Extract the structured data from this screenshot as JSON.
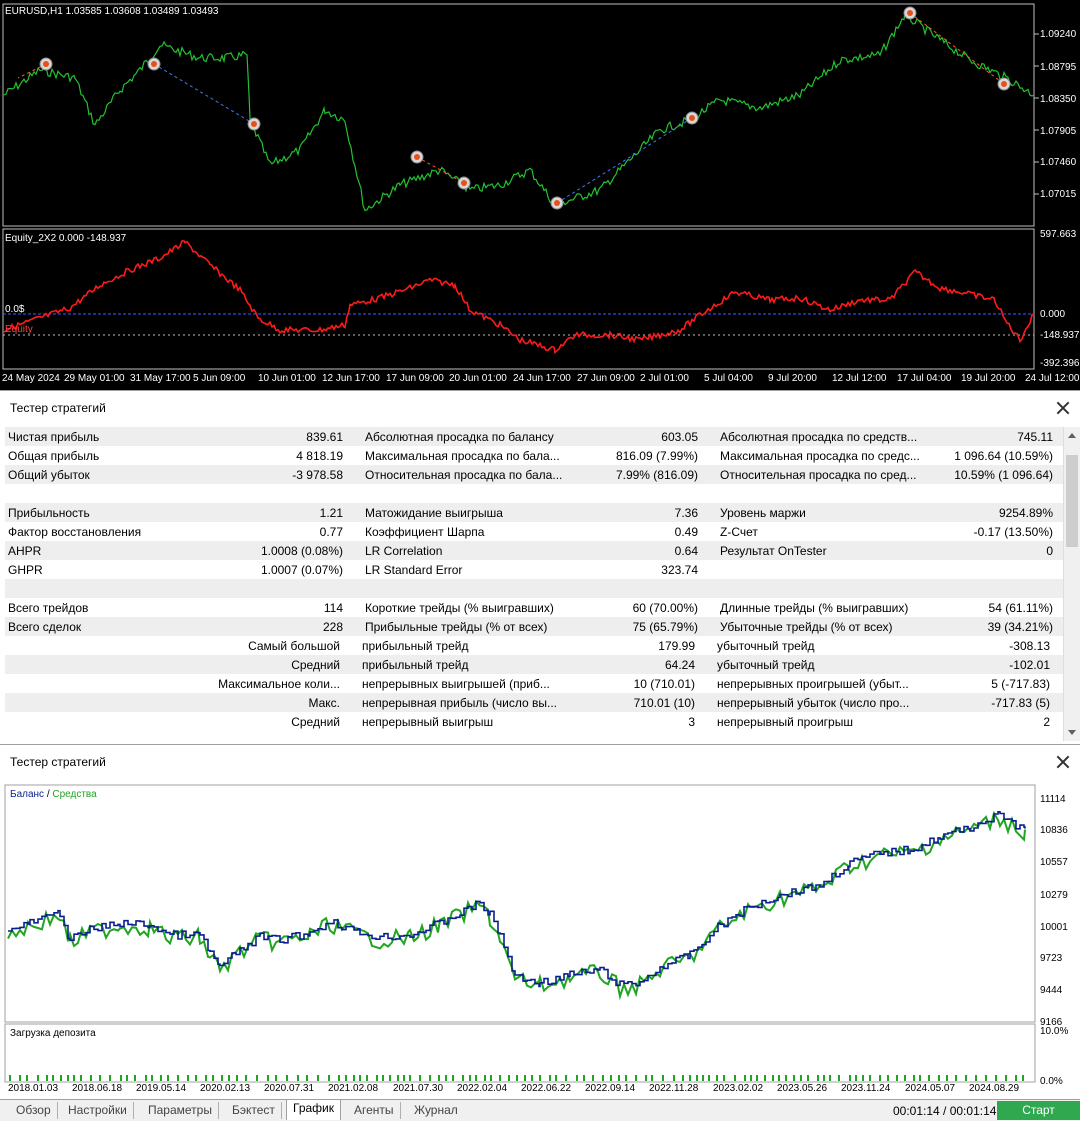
{
  "price_chart": {
    "symbol_caption": "EURUSD,H1  1.03585 1.03608 1.03489 1.03493",
    "price_ticks": [
      "1.09240",
      "1.08795",
      "1.08350",
      "1.07905",
      "1.07460",
      "1.07015"
    ],
    "equity_caption": "Equity_2X2 0.000 -148.937",
    "equity_ticks": [
      "597.663",
      "0.000",
      "-148.937",
      "-392.396"
    ],
    "zero_label": "0.0$",
    "equity_label": "Equity",
    "time_ticks": [
      "24 May 2024",
      "29 May 01:00",
      "31 May 17:00",
      "5 Jun 09:00",
      "10 Jun 01:00",
      "12 Jun 17:00",
      "17 Jun 09:00",
      "20 Jun 01:00",
      "24 Jun 17:00",
      "27 Jun 09:00",
      "2 Jul 01:00",
      "5 Jul 04:00",
      "9 Jul 20:00",
      "12 Jul 12:00",
      "17 Jul 04:00",
      "19 Jul 20:00",
      "24 Jul 12:00"
    ],
    "colors": {
      "price": "#22c32e",
      "equity": "#ff1a1a",
      "zero_line": "#3b5bff"
    }
  },
  "tester": {
    "title": "Тестер стратегий",
    "rows": [
      {
        "cells": [
          "Чистая прибыль",
          "839.61",
          "Абсолютная просадка по балансу",
          "603.05",
          "Абсолютная просадка по средств...",
          "745.11"
        ]
      },
      {
        "cells": [
          "Общая прибыль",
          "4 818.19",
          "Максимальная просадка по бала...",
          "816.09 (7.99%)",
          "Максимальная просадка по средс...",
          "1 096.64 (10.59%)"
        ]
      },
      {
        "cells": [
          "Общий убыток",
          "-3 978.58",
          "Относительная просадка по бала...",
          "7.99% (816.09)",
          "Относительная просадка по сред...",
          "10.59% (1 096.64)"
        ]
      },
      {
        "cells": [
          "",
          "",
          "",
          "",
          "",
          ""
        ]
      },
      {
        "cells": [
          "Прибыльность",
          "1.21",
          "Матожидание выигрыша",
          "7.36",
          "Уровень маржи",
          "9254.89%"
        ]
      },
      {
        "cells": [
          "Фактор восстановления",
          "0.77",
          "Коэффициент Шарпа",
          "0.49",
          "Z-Счет",
          "-0.17 (13.50%)"
        ]
      },
      {
        "cells": [
          "AHPR",
          "1.0008 (0.08%)",
          "LR Correlation",
          "0.64",
          "Результат OnTester",
          "0"
        ]
      },
      {
        "cells": [
          "GHPR",
          "1.0007 (0.07%)",
          "LR Standard Error",
          "323.74",
          "",
          ""
        ]
      },
      {
        "cells": [
          "",
          "",
          "",
          "",
          "",
          ""
        ]
      },
      {
        "cells": [
          "Всего трейдов",
          "114",
          "Короткие трейды (% выигравших)",
          "60 (70.00%)",
          "Длинные трейды (% выигравших)",
          "54 (61.11%)"
        ]
      },
      {
        "cells": [
          "Всего сделок",
          "228",
          "Прибыльные трейды (% от всех)",
          "75 (65.79%)",
          "Убыточные трейды (% от всех)",
          "39 (34.21%)"
        ]
      },
      {
        "cells": [
          "Самый большой",
          "",
          "прибыльный трейд",
          "179.99",
          "убыточный трейд",
          "-308.13"
        ]
      },
      {
        "cells": [
          "Средний",
          "",
          "прибыльный трейд",
          "64.24",
          "убыточный трейд",
          "-102.01"
        ]
      },
      {
        "cells": [
          "Максимальное коли...",
          "",
          "непрерывных выигрышей (приб...",
          "10 (710.01)",
          "непрерывных проигрышей (убыт...",
          "5 (-717.83)"
        ]
      },
      {
        "cells": [
          "Макс.",
          "",
          "непрерывная прибыль (число вы...",
          "710.01 (10)",
          "непрерывный убыток (число про...",
          "-717.83 (5)"
        ]
      },
      {
        "cells": [
          "Средний",
          "",
          "непрерывный выигрыш",
          "3",
          "непрерывный проигрыш",
          "2"
        ]
      }
    ]
  },
  "balance_chart": {
    "title": "Тестер стратегий",
    "legend_balance": "Баланс",
    "legend_sep": " / ",
    "legend_equity": "Средства",
    "y_ticks": [
      "11114",
      "10836",
      "10557",
      "10279",
      "10001",
      "9723",
      "9444",
      "9166"
    ],
    "load_title": "Загрузка депозита",
    "load_ticks": [
      "10.0%",
      "0.0%"
    ],
    "date_ticks": [
      "2018.01.03",
      "2018.06.18",
      "2019.05.14",
      "2020.02.13",
      "2020.07.31",
      "2021.02.08",
      "2021.07.30",
      "2022.02.04",
      "2022.06.22",
      "2022.09.14",
      "2022.11.28",
      "2023.02.02",
      "2023.05.26",
      "2023.11.24",
      "2024.05.07",
      "2024.08.29"
    ],
    "colors": {
      "balance": "#0a1f8f",
      "equity": "#1fa51f"
    }
  },
  "tabs": [
    {
      "label": "Обзор"
    },
    {
      "label": "Настройки"
    },
    {
      "label": "Параметры"
    },
    {
      "label": "Бэктест"
    },
    {
      "label": "График",
      "active": true
    },
    {
      "label": "Агенты"
    },
    {
      "label": "Журнал"
    }
  ],
  "timer": "00:01:14 / 00:01:14",
  "start_label": "Старт"
}
